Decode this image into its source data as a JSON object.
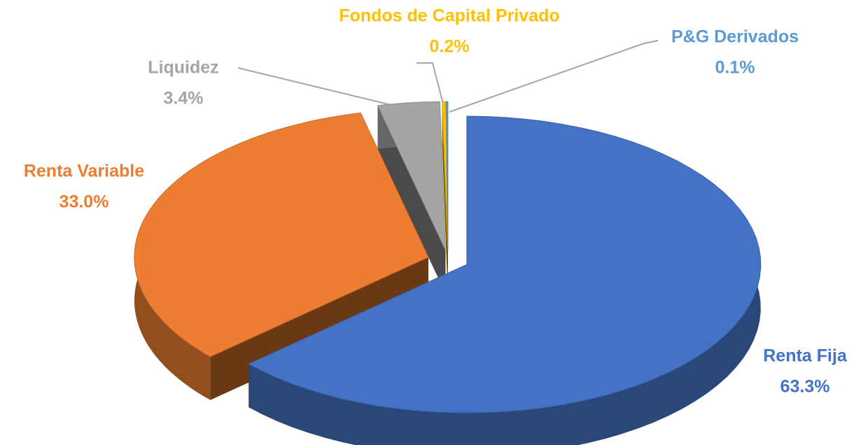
{
  "chart_data": {
    "type": "pie",
    "categories": [
      "Renta Fija",
      "Renta Variable",
      "Liquidez",
      "Fondos de Capital Privado",
      "P&G Derivados"
    ],
    "values": [
      63.3,
      33.0,
      3.4,
      0.2,
      0.1
    ],
    "value_labels": [
      "63.3%",
      "33.0%",
      "3.4%",
      "0.2%",
      "0.1%"
    ],
    "colors": [
      "#4472c4",
      "#ed7d31",
      "#a5a5a5",
      "#ffc000",
      "#5b9bd5"
    ]
  }
}
